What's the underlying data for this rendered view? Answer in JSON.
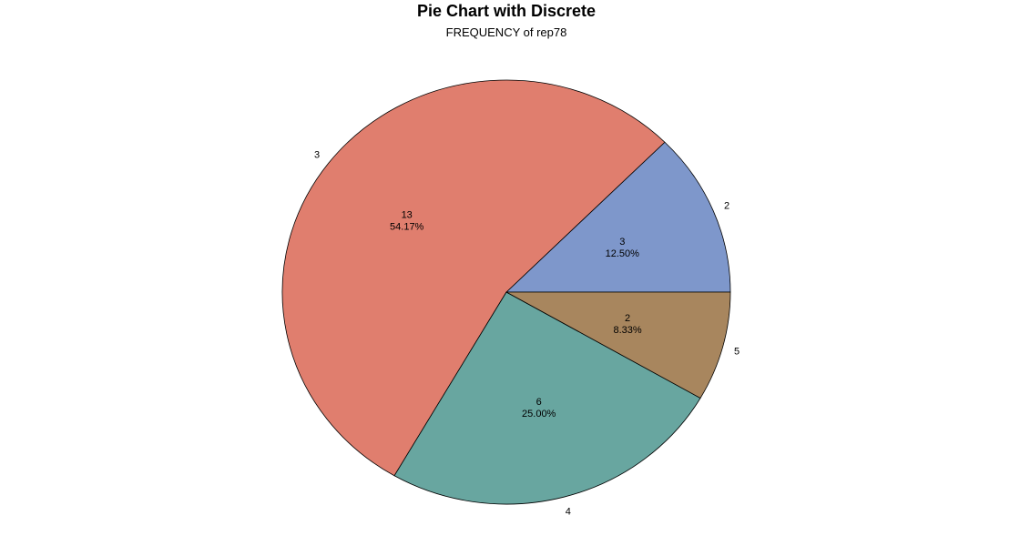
{
  "chart_data": {
    "type": "pie",
    "title": "Pie Chart with Discrete",
    "subtitle": "FREQUENCY of rep78",
    "slices": [
      {
        "label": "2",
        "value": 3,
        "percent_label": "12.50%",
        "color": "#7e97cb"
      },
      {
        "label": "3",
        "value": 13,
        "percent_label": "54.17%",
        "color": "#e07e6e"
      },
      {
        "label": "4",
        "value": 6,
        "percent_label": "25.00%",
        "color": "#68a6a0"
      },
      {
        "label": "5",
        "value": 2,
        "percent_label": "8.33%",
        "color": "#a8865e"
      }
    ]
  }
}
